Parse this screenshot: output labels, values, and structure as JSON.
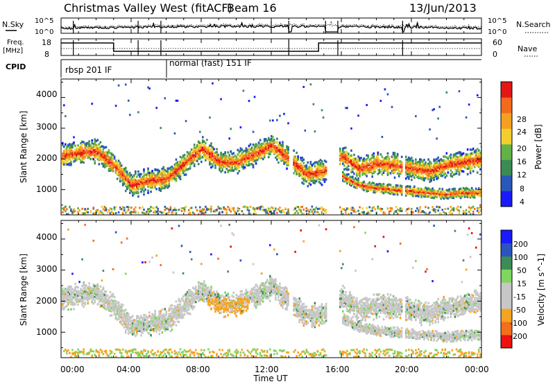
{
  "header": {
    "title": "Christmas Valley West (fitACF)",
    "beam": "Beam 16",
    "date": "13/Jun/2013"
  },
  "noise_panel": {
    "left_label": "N.Sky",
    "right_label": "N.Search",
    "left_ticks": [
      "10^5",
      "10^0"
    ],
    "right_ticks": [
      "10^5",
      "10^0"
    ]
  },
  "freq_panel": {
    "left_label": "Freq. [MHz]",
    "left_label_line1": "Freq.",
    "left_label_line2": "[MHz]",
    "right_label": "Nave",
    "left_ticks": [
      "18",
      "8"
    ],
    "right_ticks": [
      "60",
      "0"
    ]
  },
  "cpid": {
    "label": "CPID",
    "segments": [
      {
        "text": "rbsp 201 IF"
      },
      {
        "text": "normal (fast) 151 IF"
      }
    ]
  },
  "power_panel": {
    "ylabel": "Slant Range [km]",
    "yticks": [
      "4000",
      "3000",
      "2000",
      "1000"
    ],
    "colorbar_label": "Power [dB]",
    "colorbar_ticks": [
      "28",
      "24",
      "20",
      "16",
      "12",
      "8",
      "4"
    ]
  },
  "velocity_panel": {
    "ylabel": "Slant Range [km]",
    "yticks": [
      "4000",
      "3000",
      "2000",
      "1000"
    ],
    "colorbar_label": "Velocity [m s^-1]",
    "colorbar_ticks": [
      "200",
      "100",
      "50",
      "15",
      "-15",
      "-50",
      "-100",
      "-200"
    ]
  },
  "time_axis": {
    "xlabel": "Time UT",
    "ticks": [
      "00:00",
      "04:00",
      "08:00",
      "12:00",
      "16:00",
      "20:00",
      "00:00"
    ]
  },
  "colors": {
    "power": [
      "#1a1aff",
      "#2a58b8",
      "#3c8a55",
      "#62b346",
      "#f1cf2e",
      "#f5a020",
      "#f46a1c",
      "#e51616"
    ],
    "velocity": [
      "#ee1111",
      "#f46f1b",
      "#f5a321",
      "#c7c7c7",
      "#c7c7c7",
      "#7ed65f",
      "#3d8c55",
      "#2a55c0",
      "#1a1aff"
    ]
  },
  "chart_data": [
    {
      "type": "heatmap",
      "panel": "power",
      "xlabel": "Time UT",
      "ylabel": "Slant Range [km]",
      "xlim_hours": [
        0,
        24
      ],
      "ylim_km": [
        180,
        4600
      ],
      "colorbar": "Power [dB]",
      "color_range_db": [
        0,
        32
      ],
      "data_gaps_hours": [
        [
          13.0,
          13.2
        ],
        [
          15.1,
          15.8
        ],
        [
          19.45,
          19.6
        ]
      ],
      "bands": [
        {
          "name": "main",
          "t": [
            0,
            1,
            2,
            3,
            4,
            5,
            6,
            7,
            8,
            9,
            10,
            11,
            12,
            13,
            14,
            15,
            16,
            17,
            18,
            19,
            20,
            21,
            22,
            23,
            24
          ],
          "range_km": [
            2100,
            2200,
            2250,
            1800,
            1150,
            1300,
            1350,
            1850,
            2350,
            1900,
            1900,
            2150,
            2450,
            2000,
            1500,
            1600,
            2100,
            1700,
            1850,
            1800,
            1700,
            1600,
            1800,
            1900,
            2000
          ]
        },
        {
          "name": "lower",
          "t": [
            16,
            17,
            18,
            19,
            20,
            21,
            22,
            23,
            24
          ],
          "range_km": [
            1450,
            1150,
            1050,
            1000,
            950,
            900,
            850,
            900,
            900
          ]
        }
      ]
    },
    {
      "type": "heatmap",
      "panel": "velocity",
      "xlabel": "Time UT",
      "ylabel": "Slant Range [km]",
      "xlim_hours": [
        0,
        24
      ],
      "ylim_km": [
        180,
        4600
      ],
      "colorbar": "Velocity [m s^-1]",
      "color_range": [
        -200,
        200
      ],
      "feature": {
        "t_hours": [
          8.3,
          10.7
        ],
        "range_km": [
          1100,
          2100
        ],
        "velocity": "-50"
      }
    }
  ]
}
